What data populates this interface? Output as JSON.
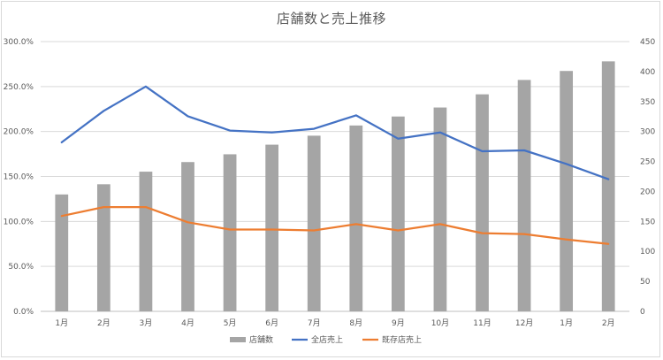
{
  "chart_data": {
    "type": "bar",
    "title": "店舗数と売上推移",
    "categories": [
      "1月",
      "2月",
      "3月",
      "4月",
      "5月",
      "6月",
      "7月",
      "8月",
      "9月",
      "10月",
      "11月",
      "12月",
      "1月",
      "2月"
    ],
    "left_axis": {
      "ylim": [
        0,
        300
      ],
      "ticks": [
        "0.0%",
        "50.0%",
        "100.0%",
        "150.0%",
        "200.0%",
        "250.0%",
        "300.0%"
      ],
      "tick_values": [
        0,
        50,
        100,
        150,
        200,
        250,
        300
      ]
    },
    "right_axis": {
      "ylim": [
        0,
        450
      ],
      "ticks": [
        "0",
        "50",
        "100",
        "150",
        "200",
        "250",
        "300",
        "350",
        "400",
        "450"
      ],
      "tick_values": [
        0,
        50,
        100,
        150,
        200,
        250,
        300,
        350,
        400,
        450
      ]
    },
    "series": [
      {
        "name": "店舗数",
        "kind": "bar",
        "axis": "right",
        "color": "#a5a5a5",
        "values": [
          195,
          212,
          233,
          249,
          262,
          278,
          293,
          310,
          325,
          340,
          362,
          386,
          401,
          417
        ]
      },
      {
        "name": "全店売上",
        "kind": "line",
        "axis": "left",
        "color": "#4472c4",
        "values": [
          188,
          223,
          250,
          217,
          201,
          199,
          203,
          218,
          192,
          199,
          178,
          179,
          164,
          147
        ]
      },
      {
        "name": "既存店売上",
        "kind": "line",
        "axis": "left",
        "color": "#ed7d31",
        "values": [
          106,
          116,
          116,
          99,
          91,
          91,
          90,
          97,
          90,
          97,
          87,
          86,
          80,
          75
        ]
      }
    ],
    "grid": true,
    "legend": "bottom"
  }
}
